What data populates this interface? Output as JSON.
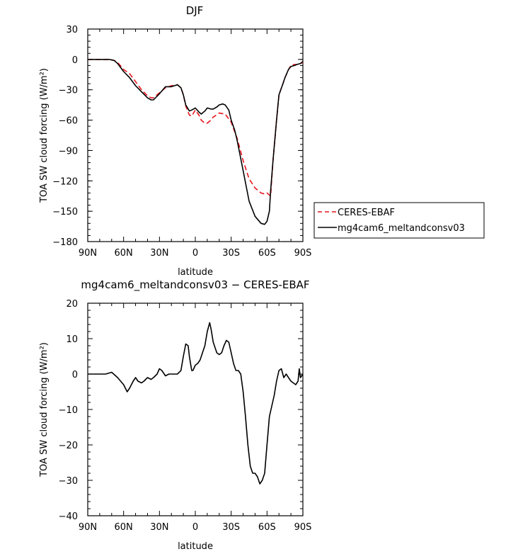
{
  "chart_data": [
    {
      "type": "line",
      "title": "DJF",
      "xlabel": "latitude",
      "ylabel": "TOA SW cloud forcing (W/m²)",
      "xlim": [
        90,
        -90
      ],
      "ylim": [
        -180,
        30
      ],
      "xticks": [
        90,
        60,
        30,
        0,
        -30,
        -60,
        -90
      ],
      "xtick_labels": [
        "90N",
        "60N",
        "30N",
        "0",
        "30S",
        "60S",
        "90S"
      ],
      "yticks": [
        30,
        0,
        -30,
        -60,
        -90,
        -120,
        -150,
        -180
      ],
      "ytick_labels": [
        "30",
        "0",
        "−30",
        "−60",
        "−90",
        "−120",
        "−150",
        "−180"
      ],
      "legend_position": "right",
      "series": [
        {
          "name": "CERES-EBAF",
          "color": "#e8141c",
          "dash": "dashed",
          "x": [
            90,
            80,
            72,
            68,
            65,
            60,
            55,
            50,
            45,
            40,
            37,
            35,
            30,
            25,
            20,
            15,
            12,
            10,
            8,
            5,
            3,
            0,
            -3,
            -5,
            -8,
            -10,
            -13,
            -15,
            -20,
            -25,
            -30,
            -35,
            -40,
            -45,
            -50,
            -55,
            -58,
            -60,
            -62,
            -63,
            -65,
            -68,
            -70,
            -73,
            -75,
            -78,
            -80,
            -83,
            -85,
            -88,
            -90
          ],
          "y": [
            0,
            0,
            0,
            -1,
            -3,
            -10,
            -14,
            -22,
            -30,
            -36,
            -38,
            -38,
            -33,
            -28,
            -26,
            -25,
            -28,
            -35,
            -46,
            -55,
            -56,
            -50,
            -55,
            -60,
            -63,
            -63,
            -60,
            -57,
            -53,
            -54,
            -62,
            -78,
            -100,
            -118,
            -127,
            -132,
            -133,
            -132,
            -134,
            -135,
            -100,
            -60,
            -35,
            -25,
            -18,
            -10,
            -6,
            -5,
            -5,
            -4,
            -3
          ]
        },
        {
          "name": "mg4cam6_meltandconsv03",
          "color": "#000000",
          "dash": "solid",
          "x": [
            90,
            80,
            72,
            68,
            65,
            60,
            55,
            50,
            45,
            40,
            37,
            35,
            30,
            25,
            20,
            15,
            12,
            10,
            8,
            5,
            3,
            0,
            -3,
            -5,
            -8,
            -10,
            -13,
            -15,
            -18,
            -20,
            -23,
            -25,
            -28,
            -30,
            -33,
            -35,
            -40,
            -45,
            -50,
            -55,
            -58,
            -60,
            -62,
            -63,
            -65,
            -68,
            -70,
            -73,
            -75,
            -78,
            -80,
            -83,
            -85,
            -88,
            -90
          ],
          "y": [
            0,
            0,
            0,
            -1,
            -4,
            -12,
            -18,
            -26,
            -32,
            -38,
            -40,
            -40,
            -34,
            -27,
            -27,
            -25,
            -28,
            -35,
            -45,
            -51,
            -50,
            -48,
            -52,
            -54,
            -51,
            -48,
            -49,
            -49,
            -47,
            -45,
            -44,
            -45,
            -50,
            -60,
            -70,
            -80,
            -110,
            -140,
            -155,
            -162,
            -163,
            -160,
            -150,
            -130,
            -100,
            -60,
            -35,
            -25,
            -18,
            -10,
            -7,
            -6,
            -5,
            -4,
            -2
          ]
        }
      ]
    },
    {
      "type": "line",
      "title": "mg4cam6_meltandconsv03 − CERES-EBAF",
      "xlabel": "latitude",
      "ylabel": "TOA SW cloud forcing (W/m²)",
      "xlim": [
        90,
        -90
      ],
      "ylim": [
        -40,
        20
      ],
      "xticks": [
        90,
        60,
        30,
        0,
        -30,
        -60,
        -90
      ],
      "xtick_labels": [
        "90N",
        "60N",
        "30N",
        "0",
        "30S",
        "60S",
        "90S"
      ],
      "yticks": [
        20,
        10,
        0,
        -10,
        -20,
        -30,
        -40
      ],
      "ytick_labels": [
        "20",
        "10",
        "0",
        "−10",
        "−20",
        "−30",
        "−40"
      ],
      "series": [
        {
          "color": "#000000",
          "dash": "solid",
          "x": [
            90,
            80,
            75,
            70,
            65,
            60,
            57,
            55,
            52,
            50,
            48,
            45,
            43,
            40,
            37,
            35,
            32,
            30,
            28,
            25,
            22,
            20,
            15,
            12,
            10,
            8,
            6,
            5,
            3,
            2,
            0,
            -2,
            -4,
            -6,
            -8,
            -10,
            -12,
            -13,
            -15,
            -18,
            -20,
            -22,
            -24,
            -26,
            -28,
            -30,
            -32,
            -34,
            -36,
            -38,
            -40,
            -42,
            -44,
            -46,
            -48,
            -50,
            -52,
            -54,
            -56,
            -58,
            -60,
            -62,
            -64,
            -66,
            -68,
            -70,
            -72,
            -74,
            -76,
            -78,
            -80,
            -82,
            -84,
            -86,
            -87,
            -88,
            -90
          ],
          "y": [
            0,
            0,
            0,
            0.5,
            -1,
            -3,
            -5,
            -4,
            -2,
            -1,
            -2,
            -2.5,
            -2,
            -1,
            -1.5,
            -1,
            0,
            1.5,
            1,
            -0.5,
            0,
            0,
            0,
            1,
            5,
            8.5,
            8,
            5,
            1,
            1,
            2.5,
            3,
            4,
            6,
            8,
            12,
            14.5,
            13,
            9,
            6,
            5.5,
            6,
            8,
            9.5,
            9,
            6,
            3,
            1,
            1,
            0,
            -5,
            -12,
            -20,
            -26,
            -28,
            -28,
            -29,
            -31,
            -30,
            -28,
            -20,
            -12,
            -9,
            -6,
            -2,
            1,
            1.5,
            -1,
            0,
            -1,
            -2,
            -2.5,
            -3,
            -2,
            1.5,
            -1,
            0
          ]
        }
      ]
    }
  ]
}
